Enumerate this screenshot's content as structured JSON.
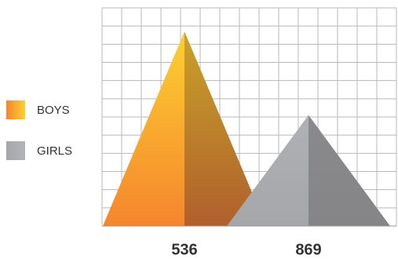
{
  "chart_data": {
    "type": "triangle",
    "categories": [
      "536",
      "869"
    ],
    "series": [
      {
        "name": "BOYS",
        "color": "#f7a21b",
        "values": [
          10.7,
          null
        ]
      },
      {
        "name": "GIRLS",
        "color": "#a7a9ac",
        "values": [
          null,
          6.1
        ]
      }
    ],
    "ylim": [
      0,
      12
    ],
    "yticks": [
      0,
      1,
      2,
      3,
      4,
      5,
      6,
      7,
      8,
      9,
      10,
      11,
      12
    ],
    "grid": true
  }
}
